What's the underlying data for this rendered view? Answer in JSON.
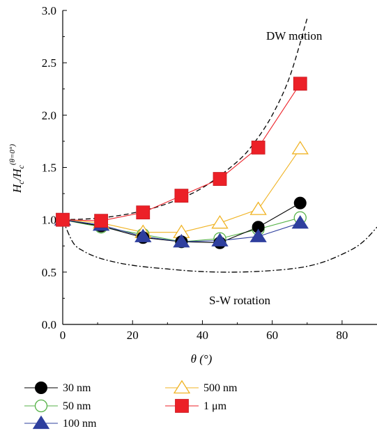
{
  "chart_data": {
    "type": "line",
    "xlabel": "θ (°)",
    "ylabel": {
      "main": "H",
      "sub1": "c",
      "sep": "/H",
      "sub2": "c",
      "sup": "(θ=0°)"
    },
    "xlim": [
      0,
      90
    ],
    "ylim": [
      0,
      3.0
    ],
    "xticks": [
      0,
      20,
      40,
      60,
      80
    ],
    "yticks": [
      0.0,
      0.5,
      1.0,
      1.5,
      2.0,
      2.5,
      3.0
    ],
    "ytick_labels": [
      "0.0",
      "0.5",
      "1.0",
      "1.5",
      "2.0",
      "2.5",
      "3.0"
    ],
    "grid": false,
    "legend_position": "below",
    "x": [
      0,
      11,
      23,
      34,
      45,
      56,
      68
    ],
    "series": [
      {
        "name": "30 nm",
        "marker": "circle-filled",
        "color": "#000000",
        "values": [
          1.0,
          0.94,
          0.83,
          0.79,
          0.78,
          0.93,
          1.16
        ]
      },
      {
        "name": "50 nm",
        "marker": "circle-open",
        "color": "#55b247",
        "values": [
          1.0,
          0.93,
          0.86,
          0.79,
          0.82,
          0.91,
          1.02
        ]
      },
      {
        "name": "100 nm",
        "marker": "triangle-filled",
        "color": "#2e3f9e",
        "values": [
          1.0,
          0.95,
          0.84,
          0.79,
          0.8,
          0.84,
          0.97
        ]
      },
      {
        "name": "500 nm",
        "marker": "triangle-open",
        "color": "#f0b323",
        "values": [
          1.0,
          0.97,
          0.88,
          0.88,
          0.97,
          1.1,
          1.68
        ]
      },
      {
        "name": "1 μm",
        "marker": "square-filled",
        "color": "#ec2027",
        "values": [
          1.0,
          0.99,
          1.07,
          1.23,
          1.39,
          1.69,
          2.3
        ]
      }
    ],
    "curves": [
      {
        "label": "DW motion",
        "style": "dashed",
        "x": [
          0,
          10,
          20,
          30,
          40,
          50,
          55,
          60,
          65,
          70
        ],
        "y": [
          1.0,
          1.015,
          1.064,
          1.155,
          1.305,
          1.556,
          1.743,
          2.0,
          2.366,
          2.924
        ]
      },
      {
        "label": "S-W rotation",
        "style": "dash-dot",
        "x": [
          0,
          3,
          6,
          10,
          15,
          20,
          25,
          30,
          35,
          40,
          45,
          50,
          55,
          60,
          65,
          70,
          75,
          80,
          84,
          87,
          90
        ],
        "y": [
          1.0,
          0.78,
          0.7,
          0.64,
          0.595,
          0.565,
          0.545,
          0.53,
          0.515,
          0.505,
          0.5,
          0.5,
          0.505,
          0.515,
          0.53,
          0.555,
          0.6,
          0.67,
          0.74,
          0.82,
          0.93
        ]
      }
    ]
  }
}
